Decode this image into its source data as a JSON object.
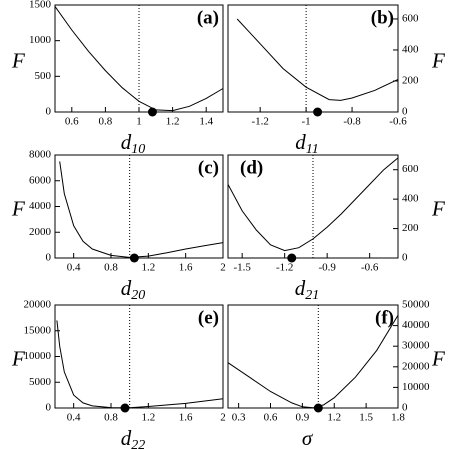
{
  "chart_data": [
    {
      "type": "line",
      "panel_label": "(a)",
      "label_corner": "right",
      "xlabel": "d",
      "xlabel_sub": "10",
      "ylabel": "F",
      "yaxis_side": "left",
      "x": [
        0.5,
        0.6,
        0.7,
        0.8,
        0.9,
        1.0,
        1.1,
        1.2,
        1.3,
        1.4,
        1.5
      ],
      "values": [
        1480,
        1150,
        850,
        580,
        340,
        150,
        30,
        20,
        80,
        190,
        330
      ],
      "xlim": [
        0.5,
        1.5
      ],
      "xticks": [
        0.6,
        0.8,
        1,
        1.2,
        1.4
      ],
      "ylim": [
        0,
        1500
      ],
      "yticks": [
        0,
        500,
        1000,
        1500
      ],
      "vline": 1,
      "marker": {
        "x": 1.08,
        "y": 0
      },
      "color": "#000000"
    },
    {
      "type": "line",
      "panel_label": "(b)",
      "label_corner": "right",
      "xlabel": "d",
      "xlabel_sub": "11",
      "ylabel": "F",
      "yaxis_side": "right",
      "x": [
        -1.3,
        -1.2,
        -1.1,
        -1.0,
        -0.9,
        -0.85,
        -0.8,
        -0.7,
        -0.6
      ],
      "values": [
        600,
        440,
        280,
        160,
        80,
        75,
        90,
        140,
        210
      ],
      "xlim": [
        -1.34,
        -0.6
      ],
      "xticks": [
        -1.2,
        -1,
        -0.8,
        -0.6
      ],
      "ylim": [
        0,
        690
      ],
      "yticks": [
        0,
        200,
        400,
        600
      ],
      "vline": -1,
      "marker": {
        "x": -0.95,
        "y": 0
      },
      "color": "#000000"
    },
    {
      "type": "line",
      "panel_label": "(c)",
      "label_corner": "right",
      "xlabel": "d",
      "xlabel_sub": "20",
      "ylabel": "F",
      "yaxis_side": "left",
      "x": [
        0.25,
        0.3,
        0.4,
        0.5,
        0.6,
        0.8,
        1.0,
        1.2,
        1.4,
        1.6,
        1.8,
        2.0
      ],
      "values": [
        7500,
        5000,
        2500,
        1300,
        700,
        200,
        50,
        150,
        400,
        700,
        950,
        1200
      ],
      "xlim": [
        0.2,
        2
      ],
      "xticks": [
        0.4,
        0.8,
        1.2,
        1.6,
        2
      ],
      "ylim": [
        0,
        8000
      ],
      "yticks": [
        0,
        2000,
        4000,
        6000,
        8000
      ],
      "vline": 1,
      "marker": {
        "x": 1.05,
        "y": 0
      },
      "color": "#000000"
    },
    {
      "type": "line",
      "panel_label": "(d)",
      "label_corner": "left",
      "xlabel": "d",
      "xlabel_sub": "21",
      "ylabel": "F",
      "yaxis_side": "right",
      "x": [
        -1.6,
        -1.5,
        -1.4,
        -1.3,
        -1.2,
        -1.1,
        -1.0,
        -0.9,
        -0.8,
        -0.7,
        -0.6,
        -0.5,
        -0.4
      ],
      "values": [
        500,
        320,
        190,
        90,
        50,
        70,
        130,
        210,
        300,
        400,
        500,
        600,
        680
      ],
      "xlim": [
        -1.6,
        -0.4
      ],
      "xticks": [
        -1.5,
        -1.2,
        -0.9,
        -0.6
      ],
      "ylim": [
        0,
        700
      ],
      "yticks": [
        0,
        200,
        400,
        600
      ],
      "vline": -1,
      "marker": {
        "x": -1.15,
        "y": 0
      },
      "color": "#000000"
    },
    {
      "type": "line",
      "panel_label": "(e)",
      "label_corner": "right",
      "xlabel": "d",
      "xlabel_sub": "22",
      "ylabel": "F",
      "yaxis_side": "left",
      "x": [
        0.22,
        0.25,
        0.3,
        0.4,
        0.5,
        0.6,
        0.8,
        1.0,
        1.2,
        1.6,
        2.0
      ],
      "values": [
        17000,
        12000,
        7000,
        2500,
        1000,
        400,
        80,
        50,
        300,
        900,
        1800
      ],
      "xlim": [
        0.2,
        2
      ],
      "xticks": [
        0.4,
        0.8,
        1.2,
        1.6,
        2
      ],
      "ylim": [
        0,
        20000
      ],
      "yticks": [
        0,
        5000,
        10000,
        15000,
        20000
      ],
      "vline": 1,
      "marker": {
        "x": 0.95,
        "y": 0
      },
      "color": "#000000"
    },
    {
      "type": "line",
      "panel_label": "(f)",
      "label_corner": "right",
      "xlabel": "σ",
      "ylabel": "F",
      "yaxis_side": "right",
      "x": [
        0.2,
        0.4,
        0.6,
        0.8,
        0.9,
        1.0,
        1.1,
        1.2,
        1.4,
        1.6,
        1.8
      ],
      "values": [
        22000,
        15000,
        8000,
        2500,
        600,
        100,
        1500,
        5000,
        15000,
        28000,
        45000
      ],
      "xlim": [
        0.2,
        1.8
      ],
      "xticks": [
        0.3,
        0.6,
        0.9,
        1.2,
        1.5,
        1.8
      ],
      "ylim": [
        0,
        50000
      ],
      "yticks": [
        0,
        10000,
        20000,
        30000,
        40000,
        50000
      ],
      "vline": 1.05,
      "marker": {
        "x": 1.05,
        "y": 0
      },
      "color": "#000000"
    }
  ]
}
